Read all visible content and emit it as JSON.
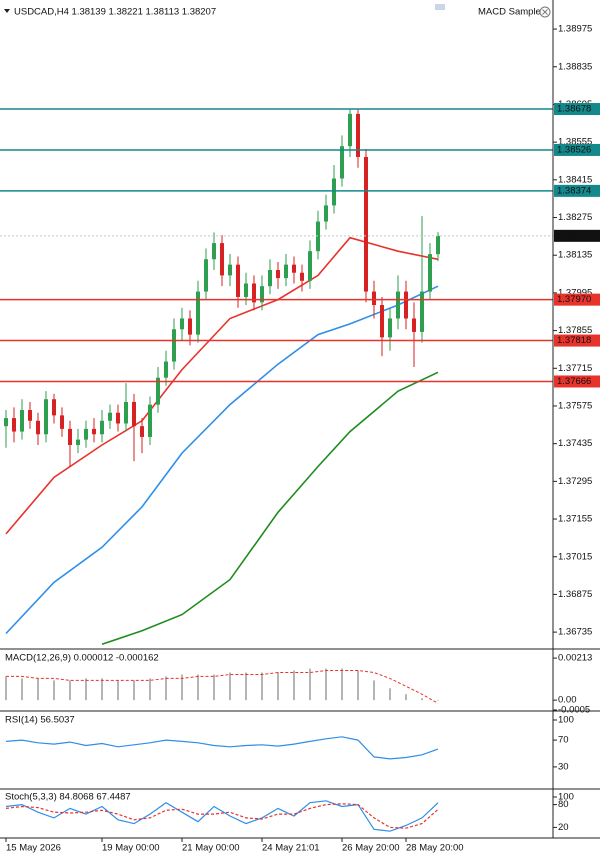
{
  "chart_data": [
    {
      "type": "candlestick",
      "title": "USDCAD,H4  1.38139 1.38221 1.38113 1.38207",
      "expert": "MACD Sample",
      "categories": [
        "15 May 2026",
        null,
        null,
        null,
        null,
        null,
        null,
        null,
        null,
        null,
        null,
        null,
        "19 May 00:00",
        null,
        null,
        null,
        null,
        null,
        null,
        null,
        null,
        null,
        "21 May 00:00",
        null,
        null,
        null,
        null,
        null,
        null,
        null,
        null,
        null,
        "24 May 21:01",
        null,
        null,
        null,
        null,
        null,
        null,
        null,
        null,
        null,
        "26 May 20:00",
        null,
        null,
        null,
        null,
        null,
        null,
        null,
        "28 May 20:00",
        null,
        null,
        null,
        null
      ],
      "open": [
        1.375,
        1.3753,
        1.3748,
        1.3756,
        1.3752,
        1.3747,
        1.376,
        1.3754,
        1.3749,
        1.3743,
        1.3745,
        1.3749,
        1.3747,
        1.3752,
        1.3755,
        1.3751,
        1.3759,
        1.375,
        1.3746,
        1.3758,
        1.3768,
        1.3774,
        1.3786,
        1.379,
        1.3784,
        1.38,
        1.3812,
        1.3818,
        1.3806,
        1.381,
        1.3798,
        1.3803,
        1.3796,
        1.3802,
        1.3808,
        1.3805,
        1.381,
        1.3807,
        1.3804,
        1.3815,
        1.3826,
        1.3832,
        1.3842,
        1.3854,
        1.3866,
        1.385,
        1.38,
        1.3795,
        1.3783,
        1.379,
        1.38,
        1.379,
        1.3785,
        1.38,
        1.38139
      ],
      "high": [
        1.3756,
        1.3757,
        1.376,
        1.3759,
        1.3755,
        1.3763,
        1.3762,
        1.3757,
        1.3752,
        1.3749,
        1.3752,
        1.3753,
        1.3756,
        1.3758,
        1.3758,
        1.3766,
        1.3762,
        1.3753,
        1.3761,
        1.3772,
        1.3778,
        1.379,
        1.3794,
        1.3793,
        1.3804,
        1.3816,
        1.3822,
        1.3821,
        1.3814,
        1.3813,
        1.3807,
        1.3806,
        1.3806,
        1.3812,
        1.3811,
        1.3814,
        1.3813,
        1.381,
        1.3819,
        1.383,
        1.3836,
        1.3847,
        1.3858,
        1.3868,
        1.3868,
        1.3853,
        1.3804,
        1.3798,
        1.3794,
        1.3806,
        1.3804,
        1.3796,
        1.3828,
        1.3818,
        1.38221
      ],
      "low": [
        1.3742,
        1.3744,
        1.3745,
        1.3749,
        1.3743,
        1.3744,
        1.3751,
        1.3746,
        1.3735,
        1.374,
        1.3742,
        1.3744,
        1.3744,
        1.3749,
        1.3748,
        1.3748,
        1.3737,
        1.374,
        1.3743,
        1.3755,
        1.3765,
        1.3771,
        1.3782,
        1.378,
        1.3781,
        1.3797,
        1.3808,
        1.3802,
        1.3802,
        1.3794,
        1.3795,
        1.3793,
        1.3793,
        1.3799,
        1.3801,
        1.3802,
        1.3803,
        1.38,
        1.3801,
        1.3812,
        1.3823,
        1.3829,
        1.3839,
        1.385,
        1.3846,
        1.3796,
        1.379,
        1.3776,
        1.3778,
        1.3786,
        1.3786,
        1.3772,
        1.3781,
        1.3797,
        1.38113
      ],
      "close": [
        1.3753,
        1.3748,
        1.3756,
        1.3752,
        1.3747,
        1.376,
        1.3754,
        1.3749,
        1.3743,
        1.3745,
        1.3749,
        1.3747,
        1.3752,
        1.3755,
        1.3751,
        1.3759,
        1.375,
        1.3746,
        1.3758,
        1.3768,
        1.3774,
        1.3786,
        1.379,
        1.3784,
        1.38,
        1.3812,
        1.3818,
        1.3806,
        1.381,
        1.3798,
        1.3803,
        1.3796,
        1.3802,
        1.3808,
        1.3805,
        1.381,
        1.3807,
        1.3804,
        1.3815,
        1.3826,
        1.3832,
        1.3842,
        1.3854,
        1.3866,
        1.385,
        1.38,
        1.3795,
        1.3783,
        1.379,
        1.38,
        1.379,
        1.3785,
        1.38,
        1.38139,
        1.38207
      ],
      "up_color": "#2e9e4f",
      "down_color": "#d62222",
      "ylim": [
        1.36676,
        1.39083
      ],
      "yticks": [
        1.38975,
        1.38835,
        1.38695,
        1.38555,
        1.38415,
        1.38275,
        1.38135,
        1.37995,
        1.37855,
        1.37715,
        1.37575,
        1.37435,
        1.37295,
        1.37155,
        1.37015,
        1.36875,
        1.36735
      ],
      "levels": [
        {
          "price": 1.38678,
          "color": "#13898c"
        },
        {
          "price": 1.38526,
          "color": "#13898c"
        },
        {
          "price": 1.38374,
          "color": "#13898c"
        },
        {
          "price": {
            "value": 1.3797,
            "label": "1.37970"
          },
          "color": "#e8322c"
        },
        {
          "price": 1.37818,
          "color": "#e8322c"
        },
        {
          "price": 1.37666,
          "color": "#e8322c"
        }
      ],
      "last_price": 1.38207,
      "moving_averages": [
        {
          "color": "#e8322c",
          "x": [
            0,
            6,
            12,
            17,
            22,
            28,
            34,
            39,
            43,
            49,
            54
          ],
          "values": [
            1.371,
            1.3731,
            1.3743,
            1.3752,
            1.3771,
            1.379,
            1.3797,
            1.3806,
            1.382,
            1.3815,
            1.3812
          ]
        },
        {
          "color": "#2f8ee8",
          "x": [
            0,
            6,
            12,
            17,
            22,
            28,
            34,
            39,
            43,
            49,
            54
          ],
          "values": [
            1.3673,
            1.3692,
            1.3705,
            1.372,
            1.374,
            1.3758,
            1.3773,
            1.3784,
            1.3788,
            1.3795,
            1.3802
          ]
        },
        {
          "color": "#1f8c1f",
          "x": [
            0,
            6,
            12,
            17,
            22,
            28,
            34,
            39,
            43,
            49,
            54
          ],
          "values": [
            null,
            null,
            1.3669,
            1.3674,
            1.368,
            1.3693,
            1.3718,
            1.3735,
            1.3748,
            1.3763,
            1.377
          ]
        }
      ]
    },
    {
      "type": "macd",
      "title": "MACD(12,26,9) 0.000012 -0.000162",
      "x": [
        0,
        2,
        4,
        6,
        8,
        10,
        12,
        14,
        16,
        18,
        20,
        22,
        24,
        26,
        28,
        30,
        32,
        34,
        36,
        38,
        40,
        42,
        44,
        46,
        48,
        50,
        52,
        54
      ],
      "histogram": {
        "color": "#b5b5b5",
        "values": [
          0.0012,
          0.0011,
          0.0011,
          0.001,
          0.001,
          0.0011,
          0.0011,
          0.001,
          0.001,
          0.0011,
          0.0012,
          0.0013,
          0.0013,
          0.0013,
          0.0014,
          0.0014,
          0.0014,
          0.0014,
          0.0015,
          0.0016,
          0.0016,
          0.0016,
          0.0015,
          0.001,
          0.0006,
          0.0003,
          0.0001,
          1.2e-05
        ]
      },
      "signal": {
        "color": "#e8322c",
        "values": [
          0.0012,
          0.0012,
          0.0011,
          0.0011,
          0.001,
          0.001,
          0.001,
          0.001,
          0.001,
          0.001,
          0.0011,
          0.0011,
          0.0012,
          0.0012,
          0.0013,
          0.0013,
          0.0013,
          0.0014,
          0.0014,
          0.0014,
          0.0015,
          0.0015,
          0.0015,
          0.0014,
          0.0011,
          0.0007,
          0.0003,
          -0.000162
        ]
      },
      "ylim": [
        -0.0005,
        0.00254
      ],
      "yticks": [
        0.00213,
        {
          "value": 0,
          "label": "0.00"
        },
        -0.0005
      ]
    },
    {
      "type": "oscillator",
      "title": "RSI(14) 56.5037",
      "x": [
        0,
        2,
        4,
        6,
        8,
        10,
        12,
        14,
        16,
        18,
        20,
        22,
        24,
        26,
        28,
        30,
        32,
        34,
        36,
        38,
        40,
        42,
        44,
        46,
        48,
        50,
        52,
        54
      ],
      "series": [
        {
          "color": "#2f8ee8",
          "values": [
            68,
            70,
            66,
            64,
            67,
            62,
            65,
            60,
            63,
            66,
            70,
            68,
            66,
            62,
            60,
            62,
            63,
            61,
            64,
            68,
            72,
            75,
            70,
            45,
            42,
            44,
            48,
            56.5037
          ]
        }
      ],
      "ylim": [
        0,
        100
      ],
      "yticks": [
        100,
        70,
        30
      ]
    },
    {
      "type": "oscillator",
      "title": "Stoch(5,3,3) 84.8068 67.4487",
      "x": [
        0,
        2,
        4,
        6,
        8,
        10,
        12,
        14,
        16,
        18,
        20,
        22,
        24,
        26,
        28,
        30,
        32,
        34,
        36,
        38,
        40,
        42,
        44,
        46,
        48,
        50,
        52,
        54
      ],
      "series": [
        {
          "color": "#2f8ee8",
          "values": [
            75,
            80,
            60,
            45,
            70,
            55,
            75,
            40,
            30,
            55,
            85,
            60,
            35,
            75,
            50,
            30,
            45,
            70,
            50,
            85,
            90,
            75,
            80,
            15,
            10,
            25,
            45,
            84.8068
          ]
        },
        {
          "color": "#e8322c",
          "dashed": true,
          "values": [
            70,
            75,
            72,
            60,
            58,
            60,
            65,
            55,
            40,
            45,
            65,
            68,
            55,
            55,
            60,
            45,
            42,
            55,
            55,
            70,
            80,
            82,
            80,
            45,
            20,
            18,
            30,
            67.4487
          ]
        }
      ],
      "ylim": [
        0,
        100
      ],
      "yticks": [
        100,
        80,
        20
      ]
    }
  ]
}
